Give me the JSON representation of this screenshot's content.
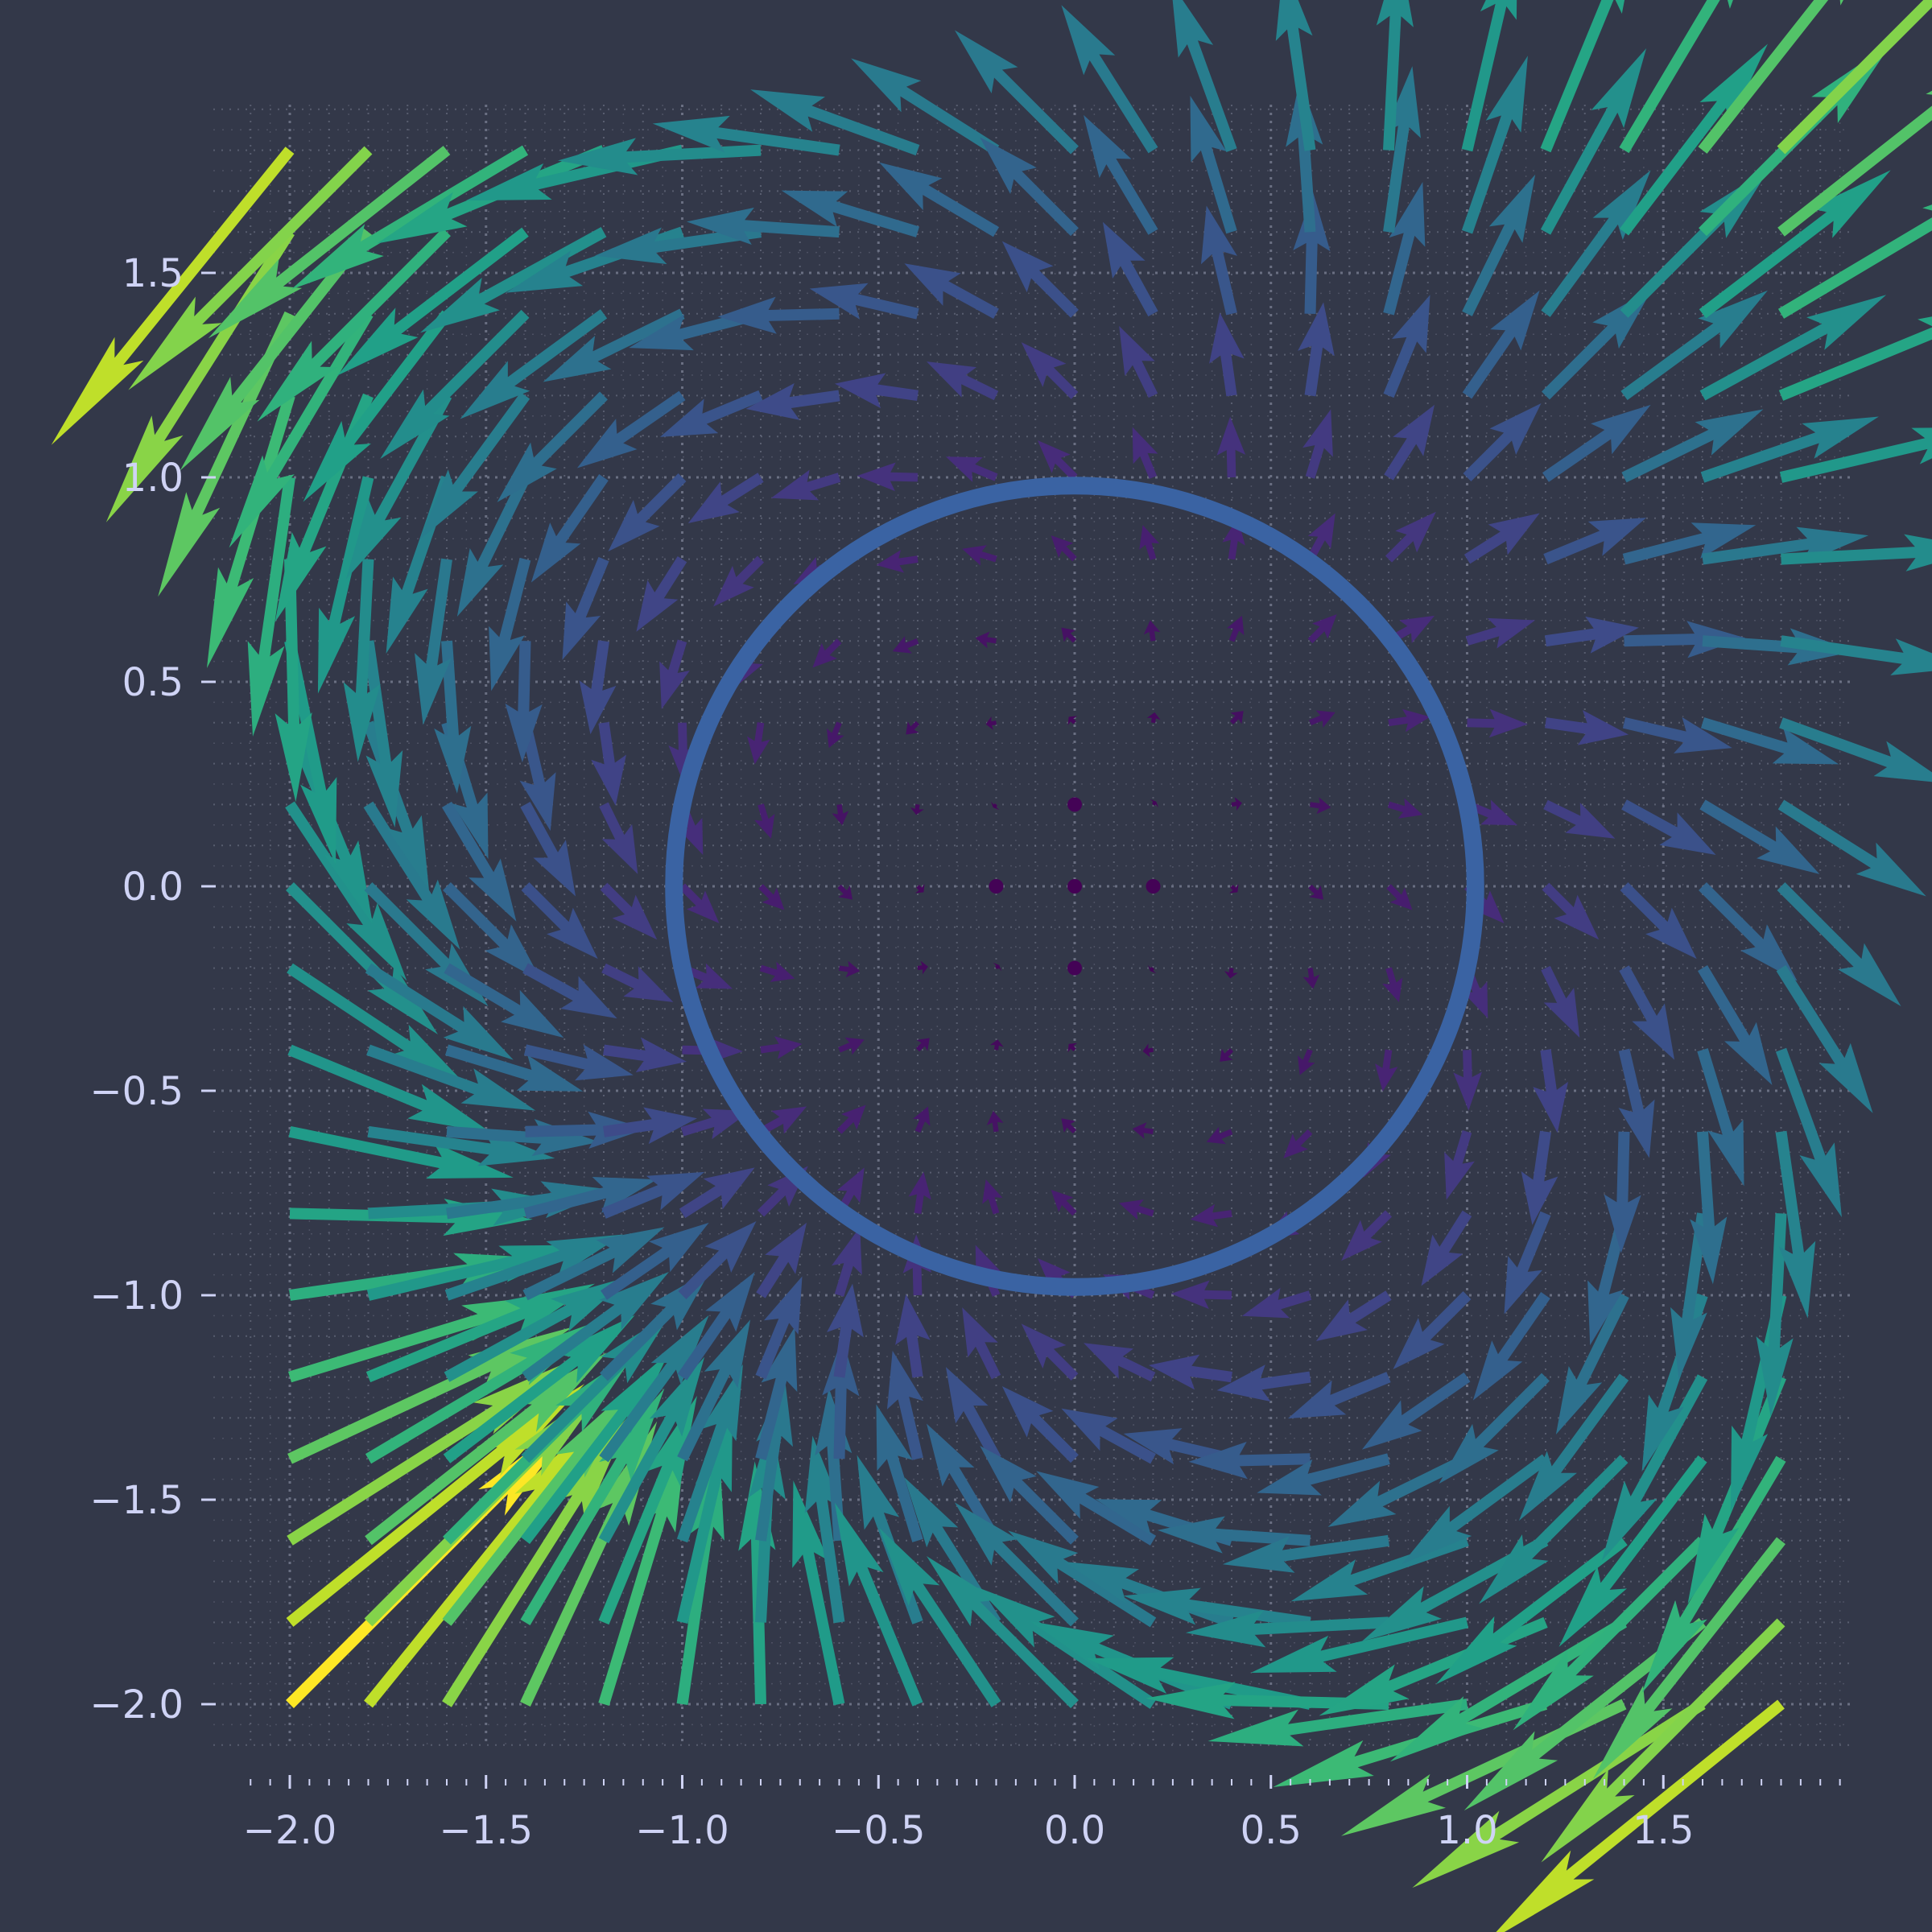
{
  "colors": {
    "background": "#333849",
    "grid": "#7d8196",
    "tick_text": "#cfd3f5",
    "circle": "#3a63a3",
    "colormap": [
      "#440154",
      "#482878",
      "#3e4a89",
      "#31688e",
      "#26828e",
      "#1f9e89",
      "#35b779",
      "#6ece58",
      "#b5de2b",
      "#fde725"
    ]
  },
  "chart_data": {
    "type": "quiver",
    "title": "",
    "xlabel": "",
    "ylabel": "",
    "field": "u = x^2 - y^2 + 2xy, v = y^2 - x^2 + 2xy (arrow color = magnitude, viridis)",
    "x_range": [
      -2.0,
      1.8
    ],
    "y_range": [
      -2.0,
      1.8
    ],
    "grid_step": 0.2,
    "xlim": [
      -2.1,
      1.98
    ],
    "ylim": [
      -2.14,
      1.93
    ],
    "x_ticks": [
      {
        "value": -2.0,
        "label": "−2.0"
      },
      {
        "value": -1.5,
        "label": "−1.5"
      },
      {
        "value": -1.0,
        "label": "−1.0"
      },
      {
        "value": -0.5,
        "label": "−0.5"
      },
      {
        "value": 0.0,
        "label": "0.0"
      },
      {
        "value": 0.5,
        "label": "0.5"
      },
      {
        "value": 1.0,
        "label": "1.0"
      },
      {
        "value": 1.5,
        "label": "1.5"
      }
    ],
    "y_ticks": [
      {
        "value": 1.5,
        "label": "1.5"
      },
      {
        "value": 1.0,
        "label": "1.0"
      },
      {
        "value": 0.5,
        "label": "0.5"
      },
      {
        "value": 0.0,
        "label": "0.0"
      },
      {
        "value": -0.5,
        "label": "−0.5"
      },
      {
        "value": -1.0,
        "label": "−1.0"
      },
      {
        "value": -1.5,
        "label": "−1.5"
      },
      {
        "value": -2.0,
        "label": "−2.0"
      }
    ],
    "overlay_circle": {
      "center": [
        0,
        0
      ],
      "radius": 1.0
    },
    "grid": "dotted major and minor"
  }
}
